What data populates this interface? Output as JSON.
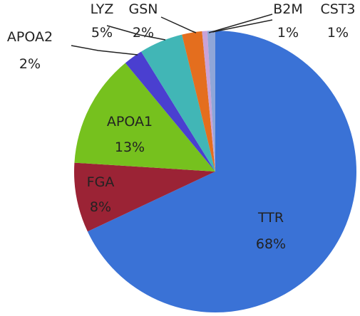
{
  "chart_data": {
    "type": "pie",
    "start": "top",
    "direction": "clockwise",
    "slices": [
      {
        "label": "TTR",
        "pct_label": "68%",
        "value": 68.0,
        "color": "#3a72d6"
      },
      {
        "label": "FGA",
        "pct_label": "8%",
        "value": 8.0,
        "color": "#9b2335"
      },
      {
        "label": "APOA1",
        "pct_label": "13%",
        "value": 13.0,
        "color": "#76c11e"
      },
      {
        "label": "APOA2",
        "pct_label": "2%",
        "value": 2.2,
        "color": "#4a3fd0"
      },
      {
        "label": "LYZ",
        "pct_label": "5%",
        "value": 5.0,
        "color": "#41b6b6"
      },
      {
        "label": "GSN",
        "pct_label": "2%",
        "value": 2.3,
        "color": "#e46e1e"
      },
      {
        "label": "B2M",
        "pct_label": "1%",
        "value": 0.6,
        "color": "#c9a2d6"
      },
      {
        "label": "CST3",
        "pct_label": "1%",
        "value": 0.9,
        "color": "#8fa6d8"
      }
    ]
  }
}
